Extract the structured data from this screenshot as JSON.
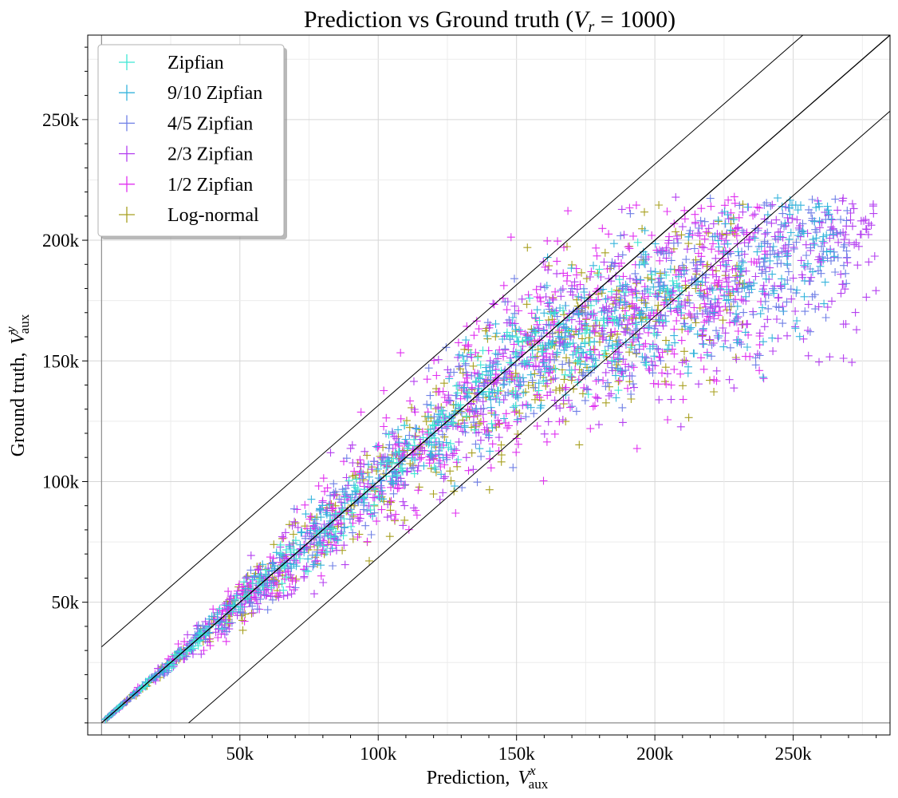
{
  "chart_data": {
    "type": "scatter",
    "title_prefix": "Prediction vs Ground truth (",
    "title_var": "V",
    "title_sub": "r",
    "title_suffix": " = 1000)",
    "xlabel_prefix": "Prediction,",
    "xlabel_var": "V",
    "xlabel_sup": "x",
    "xlabel_sub": "aux",
    "ylabel_prefix": "Ground truth,",
    "ylabel_var": "V",
    "ylabel_sup": "y",
    "ylabel_sub": "aux",
    "xlim": [
      -5000,
      285000
    ],
    "ylim": [
      -5000,
      285000
    ],
    "x_ticks": [
      50000,
      100000,
      150000,
      200000,
      250000
    ],
    "x_tick_labels": [
      "50k",
      "100k",
      "150k",
      "200k",
      "250k"
    ],
    "y_ticks": [
      50000,
      100000,
      150000,
      200000,
      250000
    ],
    "y_tick_labels": [
      "50k",
      "100k",
      "150k",
      "200k",
      "250k"
    ],
    "grid": true,
    "legend_position": "top-left",
    "reference_lines": [
      {
        "kind": "identity",
        "slope": 1,
        "intercept": 0
      },
      {
        "kind": "upper-band",
        "slope": 1,
        "intercept": 31500
      },
      {
        "kind": "lower-band",
        "slope": 1,
        "intercept": -31500
      }
    ],
    "series": [
      {
        "name": "Zipfian",
        "color": "#3fe6d4",
        "x_max": 210000,
        "spread": 0.075
      },
      {
        "name": "9/10 Zipfian",
        "color": "#35b4dc",
        "x_max": 265000,
        "spread": 0.085
      },
      {
        "name": "4/5 Zipfian",
        "color": "#6f7fe6",
        "x_max": 270000,
        "spread": 0.095
      },
      {
        "name": "2/3 Zipfian",
        "color": "#b43ff0",
        "x_max": 280000,
        "spread": 0.11
      },
      {
        "name": "1/2 Zipfian",
        "color": "#e030f0",
        "x_max": 240000,
        "spread": 0.12
      },
      {
        "name": "Log-normal",
        "color": "#a8a020",
        "x_max": 232000,
        "spread": 0.1
      }
    ]
  }
}
